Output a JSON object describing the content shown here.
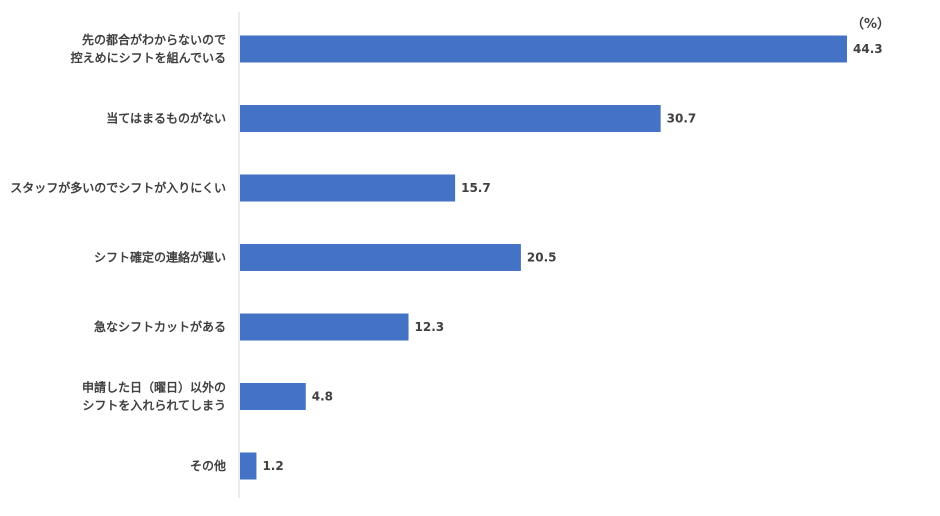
{
  "chart_data": {
    "type": "bar",
    "orientation": "horizontal",
    "unit_label": "（%）",
    "bar_color": "#4472C4",
    "axis_color": "#D9D9D9",
    "categories": [
      [
        "先の都合がわからないので",
        "控えめにシフトを組んでいる"
      ],
      [
        "当てはまるものがない"
      ],
      [
        "スタッフが多いのでシフトが入りにくい"
      ],
      [
        "シフト確定の連絡が遅い"
      ],
      [
        "急なシフトカットがある"
      ],
      [
        "申請した日（曜日）以外の",
        "シフトを入れられてしまう"
      ],
      [
        "その他"
      ]
    ],
    "values": [
      44.3,
      30.7,
      15.7,
      20.5,
      12.3,
      4.8,
      1.2
    ],
    "value_labels": [
      "44.3",
      "30.7",
      "15.7",
      "20.5",
      "12.3",
      "4.8",
      "1.2"
    ],
    "xlim": [
      0,
      50
    ]
  }
}
